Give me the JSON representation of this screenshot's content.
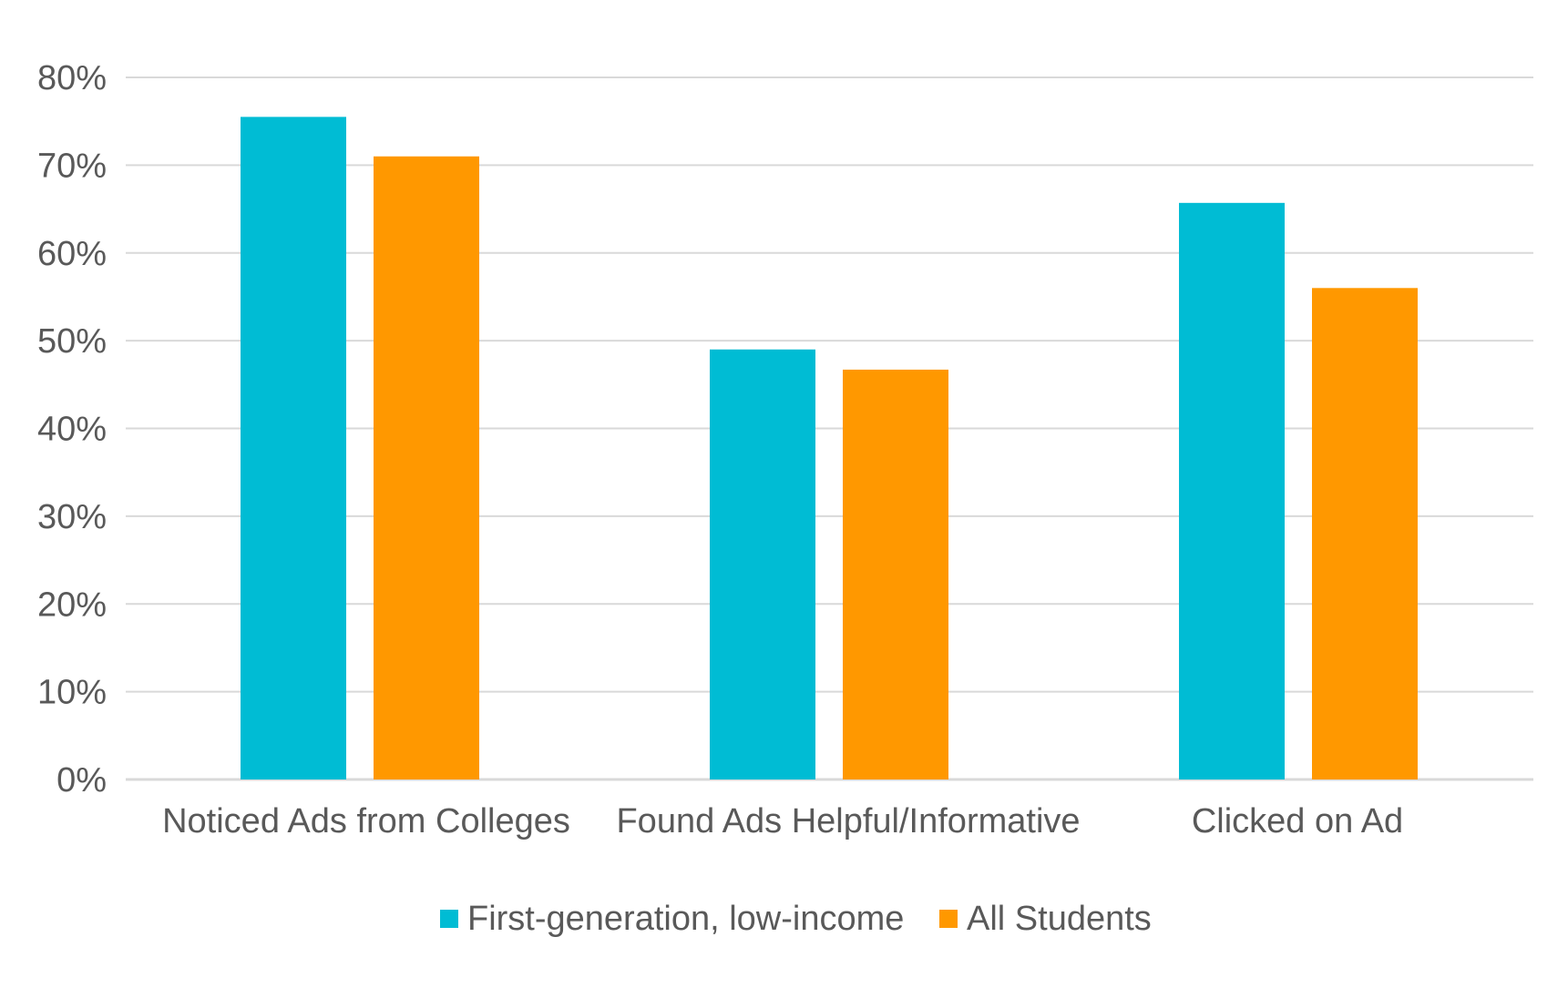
{
  "chart_data": {
    "type": "bar",
    "categories": [
      "Noticed Ads from Colleges",
      "Found Ads Helpful/Informative",
      "Clicked on Ad"
    ],
    "series": [
      {
        "name": "First-generation, low-income",
        "values": [
          75.5,
          49,
          65.7
        ],
        "color": "#00bcd4"
      },
      {
        "name": "All Students",
        "values": [
          71,
          46.7,
          56
        ],
        "color": "#ff9800"
      }
    ],
    "y_ticks": [
      "0%",
      "10%",
      "20%",
      "30%",
      "40%",
      "50%",
      "60%",
      "70%",
      "80%"
    ],
    "y_tick_values": [
      0,
      10,
      20,
      30,
      40,
      50,
      60,
      70,
      80
    ],
    "ylim": [
      0,
      80
    ],
    "grid": true,
    "legend_position": "bottom-center",
    "title": "",
    "xlabel": "",
    "ylabel": ""
  },
  "colors": {
    "grid": "#d9d9d9",
    "text": "#595959",
    "background": "#ffffff"
  }
}
